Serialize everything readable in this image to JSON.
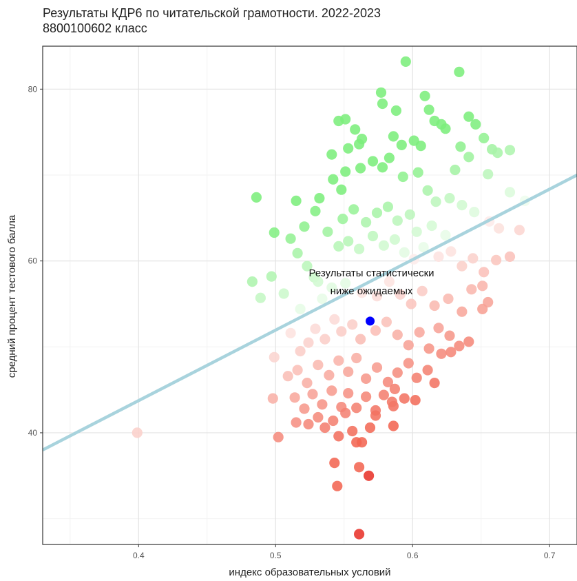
{
  "chart_data": {
    "type": "scatter",
    "title": "Результаты КДР6 по читательской грамотности. 2022-2023",
    "subtitle": "8800100602 класс",
    "xlabel": "индекс образовательных условий",
    "ylabel": "средний процент тестового балла",
    "xlim": [
      0.33,
      0.72
    ],
    "ylim": [
      27,
      85
    ],
    "x_ticks": [
      0.4,
      0.5,
      0.6,
      0.7
    ],
    "x_tick_labels": [
      "0.4",
      "0.5",
      "0.6",
      "0.7"
    ],
    "y_ticks": [
      40,
      60,
      80
    ],
    "y_tick_labels": [
      "40",
      "60",
      "80"
    ],
    "grid": true,
    "annotation": [
      "Результаты статистически",
      "ниже ожидаемых"
    ],
    "annotation_at": {
      "x": 0.57,
      "y": 58.2
    },
    "regression_line": {
      "x": [
        0.33,
        0.72
      ],
      "y": [
        38,
        70
      ],
      "color": "#a8d3dd"
    },
    "highlight_point": {
      "x": 0.569,
      "y": 53.0,
      "color": "#0000ff"
    },
    "color_above": "#7cee7c",
    "color_below": "#f26552",
    "color_extreme_low": "#e8332a",
    "points": [
      [
        0.595,
        83.2
      ],
      [
        0.634,
        82.0
      ],
      [
        0.577,
        79.6
      ],
      [
        0.578,
        78.3
      ],
      [
        0.588,
        77.5
      ],
      [
        0.609,
        79.2
      ],
      [
        0.612,
        77.6
      ],
      [
        0.616,
        76.3
      ],
      [
        0.621,
        75.9
      ],
      [
        0.624,
        75.4
      ],
      [
        0.561,
        73.6
      ],
      [
        0.546,
        76.3
      ],
      [
        0.551,
        76.5
      ],
      [
        0.558,
        75.3
      ],
      [
        0.563,
        74.2
      ],
      [
        0.553,
        73.1
      ],
      [
        0.541,
        72.4
      ],
      [
        0.586,
        74.5
      ],
      [
        0.592,
        73.5
      ],
      [
        0.601,
        74.0
      ],
      [
        0.606,
        73.4
      ],
      [
        0.641,
        76.8
      ],
      [
        0.646,
        75.9
      ],
      [
        0.652,
        74.3
      ],
      [
        0.658,
        73.0
      ],
      [
        0.662,
        72.6
      ],
      [
        0.671,
        72.9
      ],
      [
        0.635,
        73.3
      ],
      [
        0.641,
        72.1
      ],
      [
        0.631,
        70.6
      ],
      [
        0.655,
        70.1
      ],
      [
        0.671,
        68.0
      ],
      [
        0.682,
        67.0
      ],
      [
        0.486,
        67.4
      ],
      [
        0.515,
        67.0
      ],
      [
        0.532,
        67.3
      ],
      [
        0.529,
        65.8
      ],
      [
        0.542,
        69.5
      ],
      [
        0.548,
        68.3
      ],
      [
        0.551,
        70.4
      ],
      [
        0.562,
        70.8
      ],
      [
        0.571,
        71.6
      ],
      [
        0.578,
        70.9
      ],
      [
        0.583,
        72.0
      ],
      [
        0.593,
        69.8
      ],
      [
        0.604,
        70.3
      ],
      [
        0.611,
        68.2
      ],
      [
        0.617,
        66.9
      ],
      [
        0.627,
        67.3
      ],
      [
        0.636,
        66.5
      ],
      [
        0.645,
        65.7
      ],
      [
        0.656,
        64.6
      ],
      [
        0.663,
        63.8
      ],
      [
        0.499,
        63.3
      ],
      [
        0.511,
        62.6
      ],
      [
        0.521,
        64.0
      ],
      [
        0.538,
        63.4
      ],
      [
        0.549,
        64.9
      ],
      [
        0.557,
        66.0
      ],
      [
        0.566,
        64.5
      ],
      [
        0.574,
        65.6
      ],
      [
        0.582,
        66.3
      ],
      [
        0.589,
        64.7
      ],
      [
        0.598,
        65.4
      ],
      [
        0.603,
        63.4
      ],
      [
        0.614,
        64.1
      ],
      [
        0.624,
        63.0
      ],
      [
        0.483,
        57.6
      ],
      [
        0.497,
        58.2
      ],
      [
        0.516,
        60.9
      ],
      [
        0.523,
        59.4
      ],
      [
        0.528,
        58.1
      ],
      [
        0.531,
        57.6
      ],
      [
        0.546,
        61.7
      ],
      [
        0.553,
        62.3
      ],
      [
        0.561,
        61.4
      ],
      [
        0.571,
        62.9
      ],
      [
        0.579,
        61.8
      ],
      [
        0.587,
        62.5
      ],
      [
        0.594,
        61.0
      ],
      [
        0.601,
        60.2
      ],
      [
        0.608,
        61.6
      ],
      [
        0.619,
        60.5
      ],
      [
        0.628,
        61.1
      ],
      [
        0.636,
        59.4
      ],
      [
        0.644,
        60.3
      ],
      [
        0.652,
        58.7
      ],
      [
        0.661,
        60.1
      ],
      [
        0.671,
        60.5
      ],
      [
        0.678,
        63.6
      ],
      [
        0.489,
        55.7
      ],
      [
        0.506,
        56.2
      ],
      [
        0.518,
        54.4
      ],
      [
        0.534,
        55.6
      ],
      [
        0.541,
        56.9
      ],
      [
        0.551,
        57.4
      ],
      [
        0.563,
        56.3
      ],
      [
        0.574,
        55.9
      ],
      [
        0.583,
        57.6
      ],
      [
        0.591,
        56.1
      ],
      [
        0.599,
        55.0
      ],
      [
        0.607,
        56.5
      ],
      [
        0.616,
        54.8
      ],
      [
        0.626,
        55.6
      ],
      [
        0.636,
        54.1
      ],
      [
        0.643,
        56.7
      ],
      [
        0.651,
        57.1
      ],
      [
        0.655,
        55.2
      ],
      [
        0.651,
        54.4
      ],
      [
        0.511,
        51.6
      ],
      [
        0.518,
        49.5
      ],
      [
        0.524,
        50.5
      ],
      [
        0.529,
        52.1
      ],
      [
        0.536,
        50.9
      ],
      [
        0.543,
        53.2
      ],
      [
        0.548,
        51.8
      ],
      [
        0.556,
        52.6
      ],
      [
        0.562,
        50.9
      ],
      [
        0.573,
        51.9
      ],
      [
        0.581,
        52.9
      ],
      [
        0.589,
        51.4
      ],
      [
        0.597,
        50.2
      ],
      [
        0.605,
        51.7
      ],
      [
        0.612,
        49.8
      ],
      [
        0.619,
        52.2
      ],
      [
        0.627,
        51.3
      ],
      [
        0.634,
        50.1
      ],
      [
        0.641,
        50.6
      ],
      [
        0.499,
        48.8
      ],
      [
        0.509,
        46.6
      ],
      [
        0.516,
        47.3
      ],
      [
        0.523,
        45.8
      ],
      [
        0.531,
        47.9
      ],
      [
        0.539,
        46.7
      ],
      [
        0.546,
        48.4
      ],
      [
        0.553,
        47.1
      ],
      [
        0.559,
        48.7
      ],
      [
        0.566,
        46.3
      ],
      [
        0.574,
        47.6
      ],
      [
        0.582,
        45.9
      ],
      [
        0.589,
        47.0
      ],
      [
        0.597,
        48.1
      ],
      [
        0.603,
        46.4
      ],
      [
        0.611,
        47.3
      ],
      [
        0.621,
        49.2
      ],
      [
        0.628,
        49.4
      ],
      [
        0.616,
        45.8
      ],
      [
        0.498,
        44.0
      ],
      [
        0.514,
        44.1
      ],
      [
        0.521,
        42.8
      ],
      [
        0.527,
        44.5
      ],
      [
        0.534,
        43.3
      ],
      [
        0.541,
        44.9
      ],
      [
        0.548,
        43.0
      ],
      [
        0.553,
        44.6
      ],
      [
        0.559,
        42.9
      ],
      [
        0.566,
        44.2
      ],
      [
        0.573,
        42.6
      ],
      [
        0.579,
        44.4
      ],
      [
        0.586,
        43.1
      ],
      [
        0.594,
        44.0
      ],
      [
        0.602,
        43.8
      ],
      [
        0.587,
        45.1
      ],
      [
        0.585,
        43.6
      ],
      [
        0.502,
        39.5
      ],
      [
        0.515,
        41.2
      ],
      [
        0.524,
        41.0
      ],
      [
        0.531,
        41.8
      ],
      [
        0.536,
        40.6
      ],
      [
        0.542,
        41.4
      ],
      [
        0.546,
        39.6
      ],
      [
        0.551,
        42.3
      ],
      [
        0.556,
        40.2
      ],
      [
        0.559,
        38.9
      ],
      [
        0.563,
        38.9
      ],
      [
        0.569,
        40.6
      ],
      [
        0.573,
        42.0
      ],
      [
        0.586,
        40.8
      ],
      [
        0.399,
        40.0
      ],
      [
        0.543,
        36.5
      ],
      [
        0.561,
        36.0
      ],
      [
        0.568,
        35.0
      ],
      [
        0.545,
        33.8
      ],
      [
        0.561,
        28.2
      ]
    ]
  }
}
